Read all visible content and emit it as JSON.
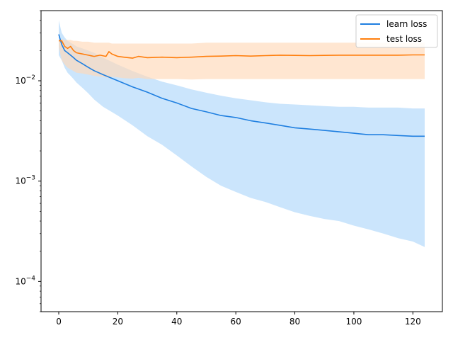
{
  "chart_data": {
    "type": "line",
    "yscale": "log",
    "xlim": [
      -6,
      130
    ],
    "ylim": [
      5e-05,
      0.05
    ],
    "xticks": [
      0,
      20,
      40,
      60,
      80,
      100,
      120
    ],
    "xtick_labels": [
      "0",
      "20",
      "40",
      "60",
      "80",
      "100",
      "120"
    ],
    "yticks": [
      0.0001,
      0.001,
      0.01
    ],
    "ytick_labels": [
      "10^-4",
      "10^-3",
      "10^-2"
    ],
    "legend_position": "top-right",
    "grid": false,
    "series": [
      {
        "name": "learn loss",
        "color": "#1f7fe0",
        "band_color": "#b9dcfb",
        "x": [
          0,
          1,
          2,
          3,
          4,
          5,
          6,
          8,
          10,
          12,
          15,
          20,
          25,
          30,
          35,
          40,
          45,
          50,
          55,
          60,
          65,
          70,
          75,
          80,
          85,
          90,
          95,
          100,
          105,
          110,
          115,
          120,
          124
        ],
        "y": [
          0.029,
          0.023,
          0.02,
          0.019,
          0.018,
          0.017,
          0.016,
          0.0148,
          0.0136,
          0.0126,
          0.0115,
          0.01,
          0.0087,
          0.0077,
          0.0067,
          0.006,
          0.0053,
          0.0049,
          0.0045,
          0.0043,
          0.004,
          0.0038,
          0.0036,
          0.0034,
          0.0033,
          0.0032,
          0.0031,
          0.003,
          0.0029,
          0.0029,
          0.00285,
          0.0028,
          0.0028
        ],
        "upper": [
          0.04,
          0.03,
          0.027,
          0.025,
          0.024,
          0.023,
          0.022,
          0.021,
          0.02,
          0.019,
          0.017,
          0.0145,
          0.0125,
          0.011,
          0.0098,
          0.009,
          0.0082,
          0.0076,
          0.0071,
          0.0067,
          0.0064,
          0.0061,
          0.0059,
          0.0058,
          0.0057,
          0.0056,
          0.0055,
          0.0055,
          0.0054,
          0.0054,
          0.0054,
          0.0053,
          0.0053
        ],
        "lower": [
          0.018,
          0.016,
          0.0135,
          0.012,
          0.0112,
          0.0104,
          0.0096,
          0.0085,
          0.0075,
          0.0065,
          0.0055,
          0.0045,
          0.0036,
          0.0028,
          0.0023,
          0.0018,
          0.0014,
          0.0011,
          0.0009,
          0.00078,
          0.00068,
          0.00062,
          0.00055,
          0.00049,
          0.00045,
          0.00042,
          0.0004,
          0.00036,
          0.00033,
          0.0003,
          0.00027,
          0.00025,
          0.00022
        ]
      },
      {
        "name": "test loss",
        "color": "#ff7f0e",
        "band_color": "#ffd8b8",
        "x": [
          0,
          1,
          2,
          3,
          4,
          5,
          6,
          8,
          10,
          12,
          14,
          16,
          17,
          18,
          20,
          22,
          25,
          27,
          30,
          35,
          40,
          45,
          50,
          55,
          60,
          65,
          70,
          75,
          80,
          85,
          90,
          95,
          100,
          105,
          110,
          115,
          120,
          124
        ],
        "y": [
          0.025,
          0.025,
          0.022,
          0.021,
          0.022,
          0.02,
          0.019,
          0.0185,
          0.018,
          0.0175,
          0.018,
          0.0175,
          0.0195,
          0.0185,
          0.0175,
          0.0172,
          0.0168,
          0.0175,
          0.017,
          0.0172,
          0.017,
          0.0172,
          0.0175,
          0.0176,
          0.0178,
          0.0176,
          0.0178,
          0.018,
          0.0179,
          0.0178,
          0.0179,
          0.018,
          0.018,
          0.018,
          0.018,
          0.018,
          0.0181,
          0.0181
        ],
        "upper": [
          0.026,
          0.026,
          0.0255,
          0.0255,
          0.0255,
          0.025,
          0.025,
          0.0245,
          0.0245,
          0.024,
          0.024,
          0.024,
          0.024,
          0.0235,
          0.0235,
          0.0235,
          0.0235,
          0.0235,
          0.0235,
          0.0235,
          0.0235,
          0.0235,
          0.024,
          0.024,
          0.024,
          0.024,
          0.024,
          0.024,
          0.024,
          0.024,
          0.024,
          0.024,
          0.024,
          0.024,
          0.024,
          0.024,
          0.024,
          0.024
        ],
        "lower": [
          0.022,
          0.016,
          0.0145,
          0.0135,
          0.013,
          0.0125,
          0.012,
          0.0118,
          0.0115,
          0.0112,
          0.011,
          0.0108,
          0.0106,
          0.011,
          0.0108,
          0.0106,
          0.0105,
          0.0107,
          0.0104,
          0.0104,
          0.0104,
          0.0103,
          0.0104,
          0.0104,
          0.0104,
          0.0104,
          0.0104,
          0.0104,
          0.0104,
          0.0104,
          0.0104,
          0.0104,
          0.0104,
          0.0104,
          0.0104,
          0.0104,
          0.0104,
          0.0104
        ]
      }
    ]
  }
}
